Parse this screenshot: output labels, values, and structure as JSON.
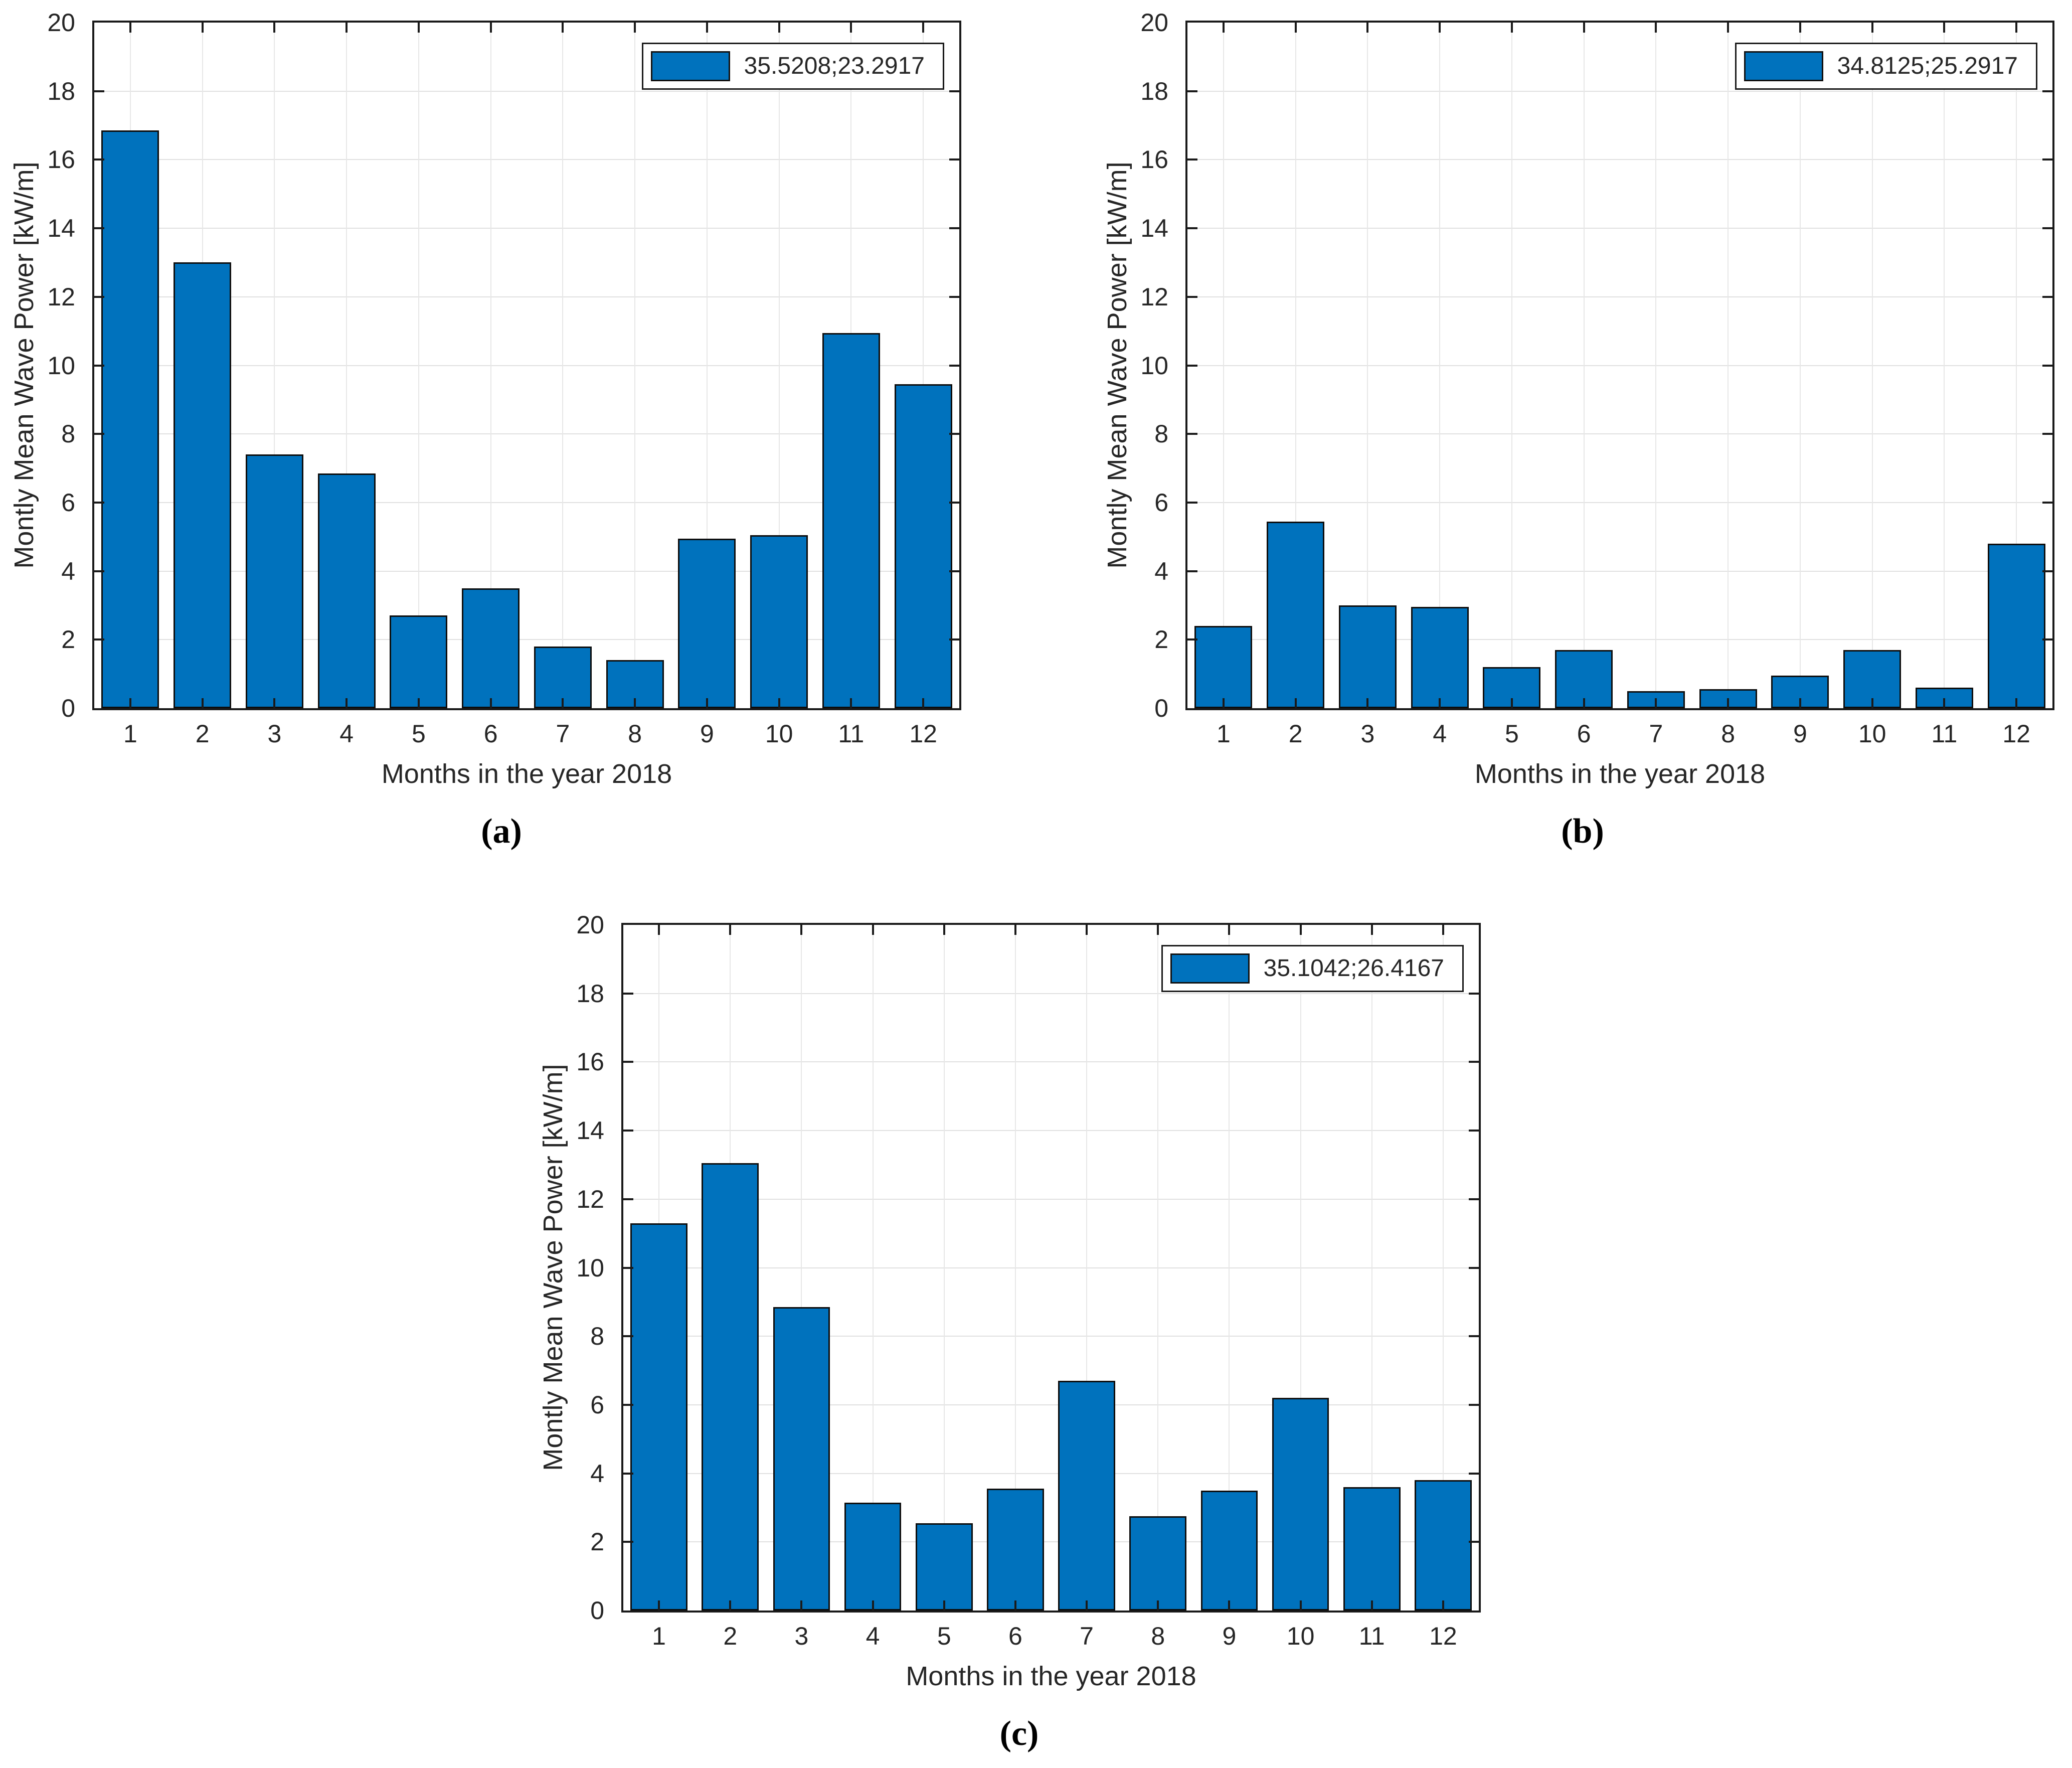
{
  "figure": {
    "background_color": "#ffffff",
    "bar_color": "#0072BD",
    "grid_color": "#e0e0e0",
    "axis_color": "#1a1a1a"
  },
  "chart_data": [
    {
      "id": "a",
      "type": "bar",
      "caption": "(a)",
      "legend": "35.5208;23.2917",
      "xlabel": "Months in the year 2018",
      "ylabel": "Montly Mean Wave Power [kW/m]",
      "categories": [
        1,
        2,
        3,
        4,
        5,
        6,
        7,
        8,
        9,
        10,
        11,
        12
      ],
      "values": [
        16.85,
        13.0,
        7.4,
        6.85,
        2.7,
        3.5,
        1.8,
        1.4,
        4.95,
        5.05,
        10.95,
        9.45
      ],
      "ylim": [
        0,
        20
      ],
      "ytick_step": 2,
      "bar_color": "#0072BD",
      "grid": true,
      "legend_position": "top-right"
    },
    {
      "id": "b",
      "type": "bar",
      "caption": "(b)",
      "legend": "34.8125;25.2917",
      "xlabel": "Months in the year 2018",
      "ylabel": "Montly Mean Wave Power [kW/m]",
      "categories": [
        1,
        2,
        3,
        4,
        5,
        6,
        7,
        8,
        9,
        10,
        11,
        12
      ],
      "values": [
        2.4,
        5.45,
        3.0,
        2.95,
        1.2,
        1.7,
        0.5,
        0.55,
        0.95,
        1.7,
        0.6,
        4.8
      ],
      "ylim": [
        0,
        20
      ],
      "ytick_step": 2,
      "bar_color": "#0072BD",
      "grid": true,
      "legend_position": "top-right"
    },
    {
      "id": "c",
      "type": "bar",
      "caption": "(c)",
      "legend": "35.1042;26.4167",
      "xlabel": "Months in the year 2018",
      "ylabel": "Montly Mean Wave Power [kW/m]",
      "categories": [
        1,
        2,
        3,
        4,
        5,
        6,
        7,
        8,
        9,
        10,
        11,
        12
      ],
      "values": [
        11.3,
        13.05,
        8.85,
        3.15,
        2.55,
        3.55,
        6.7,
        2.75,
        3.5,
        6.2,
        3.6,
        3.8
      ],
      "ylim": [
        0,
        20
      ],
      "ytick_step": 2,
      "bar_color": "#0072BD",
      "grid": true,
      "legend_position": "top-right"
    }
  ]
}
